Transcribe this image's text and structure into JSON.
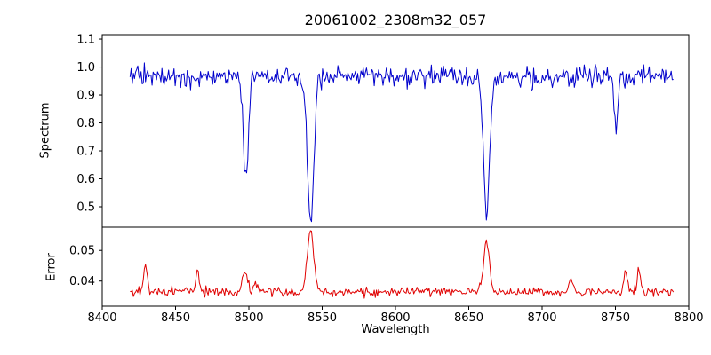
{
  "chart_data": {
    "type": "line",
    "title": "20061002_2308m32_057",
    "xlabel": "Wavelength",
    "legend": "none",
    "grid": false,
    "x": {
      "min": 8400,
      "max": 8800,
      "ticks": [
        8400,
        8450,
        8500,
        8550,
        8600,
        8650,
        8700,
        8750,
        8800
      ],
      "ticklabels": [
        "8400",
        "8450",
        "8500",
        "8550",
        "8600",
        "8650",
        "8700",
        "8750",
        "8800"
      ],
      "data_min": 8419,
      "data_max": 8790,
      "step": 0.75
    },
    "panels": [
      {
        "name": "spectrum",
        "ylabel": "Spectrum",
        "color": "#0000cc",
        "ylim": [
          0.427,
          1.116
        ],
        "yticks": [
          0.5,
          0.6,
          0.7,
          0.8,
          0.9,
          1.0,
          1.1
        ],
        "yticklabels": [
          "0.5",
          "0.6",
          "0.7",
          "0.8",
          "0.9",
          "1.0",
          "1.1"
        ],
        "baseline": 0.965,
        "noise_sigma": 0.018,
        "seed": 42,
        "features": [
          {
            "center": 8498.0,
            "amplitude": -0.36,
            "width": 1.7
          },
          {
            "center": 8542.1,
            "amplitude": -0.52,
            "width": 2.2
          },
          {
            "center": 8662.1,
            "amplitude": -0.5,
            "width": 2.0
          },
          {
            "center": 8750.5,
            "amplitude": -0.19,
            "width": 1.3
          }
        ]
      },
      {
        "name": "error",
        "ylabel": "Error",
        "color": "#e00000",
        "ylim": [
          0.0318,
          0.0576
        ],
        "yticks": [
          0.04,
          0.05
        ],
        "yticklabels": [
          "0.04",
          "0.05"
        ],
        "baseline": 0.0365,
        "noise_sigma": 0.0007,
        "seed": 7,
        "features": [
          {
            "center": 8429.5,
            "amplitude": 0.0085,
            "width": 1.2
          },
          {
            "center": 8465.0,
            "amplitude": 0.0075,
            "width": 1.0
          },
          {
            "center": 8497.5,
            "amplitude": 0.007,
            "width": 1.6
          },
          {
            "center": 8505.0,
            "amplitude": 0.003,
            "width": 1.2
          },
          {
            "center": 8542.1,
            "amplitude": 0.02,
            "width": 2.2
          },
          {
            "center": 8662.1,
            "amplitude": 0.016,
            "width": 2.0
          },
          {
            "center": 8720.0,
            "amplitude": 0.0035,
            "width": 1.2
          },
          {
            "center": 8757.0,
            "amplitude": 0.0065,
            "width": 1.2
          },
          {
            "center": 8766.0,
            "amplitude": 0.0075,
            "width": 1.1
          }
        ]
      }
    ]
  }
}
